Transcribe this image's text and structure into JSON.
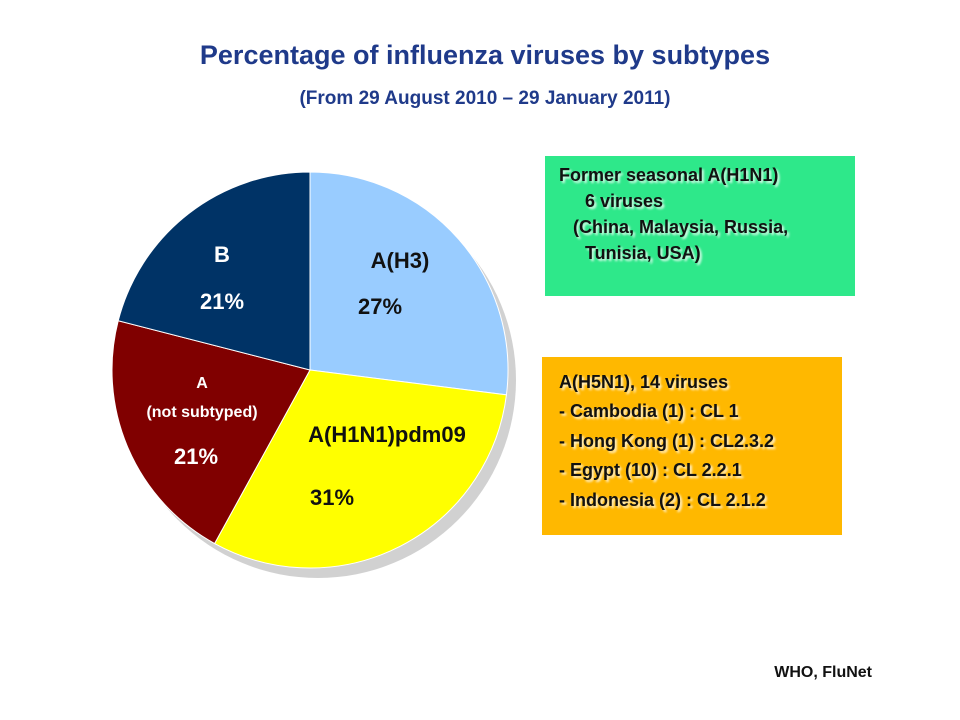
{
  "title": "Percentage of influenza viruses by subtypes",
  "subtitle": "(From 29 August 2010 – 29 January 2011)",
  "chart_data": {
    "type": "pie",
    "slices": [
      {
        "label": "A(H3)",
        "value": 27,
        "value_label": "27%",
        "color": "#99ccff"
      },
      {
        "label": "A(H1N1)pdm09",
        "value": 31,
        "value_label": "31%",
        "color": "#ffff00"
      },
      {
        "label_lines": [
          "A",
          "(not subtyped)"
        ],
        "value": 21,
        "value_label": "21%",
        "color": "#800000"
      },
      {
        "label": "B",
        "value": 21,
        "value_label": "21%",
        "color": "#003366"
      }
    ]
  },
  "former_seasonal_box": {
    "color": "#2ee88a",
    "lines": [
      "Former seasonal A(H1N1)",
      "6 viruses",
      "(China, Malaysia, Russia,",
      "Tunisia, USA)"
    ]
  },
  "h5n1_box": {
    "color": "#ffb800",
    "lines": [
      "A(H5N1), 14 viruses",
      "- Cambodia (1) : CL 1",
      "- Hong Kong (1) : CL2.3.2",
      "- Egypt (10) : CL 2.2.1",
      "- Indonesia (2) : CL 2.1.2"
    ]
  },
  "source": "WHO, FluNet"
}
